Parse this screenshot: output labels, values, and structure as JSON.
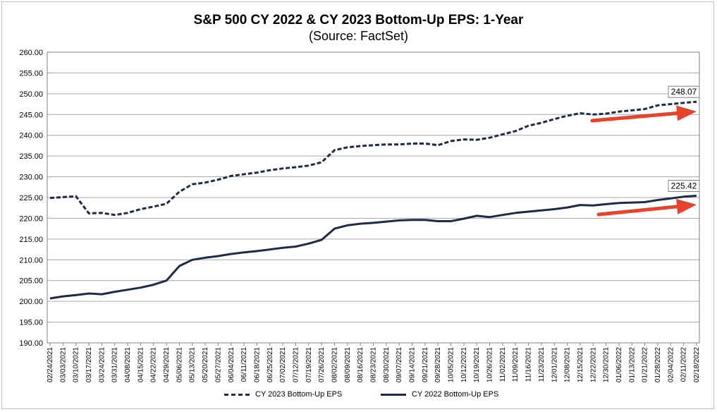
{
  "chart_data": {
    "type": "line",
    "title": "S&P 500 CY 2022 & CY 2023 Bottom-Up EPS: 1-Year",
    "subtitle": "(Source: FactSet)",
    "ylim": [
      190,
      260
    ],
    "yticks": [
      "190.00",
      "195.00",
      "200.00",
      "205.00",
      "210.00",
      "215.00",
      "220.00",
      "225.00",
      "230.00",
      "235.00",
      "240.00",
      "245.00",
      "250.00",
      "255.00",
      "260.00"
    ],
    "grid": true,
    "legend_position": "bottom",
    "x": [
      "02/24/2021",
      "03/03/2021",
      "03/10/2021",
      "03/17/2021",
      "03/24/2021",
      "03/31/2021",
      "04/08/2021",
      "04/15/2021",
      "04/22/2021",
      "04/29/2021",
      "05/06/2021",
      "05/13/2021",
      "05/20/2021",
      "05/27/2021",
      "06/04/2021",
      "06/11/2021",
      "06/18/2021",
      "06/25/2021",
      "07/02/2021",
      "07/12/2021",
      "07/19/2021",
      "07/26/2021",
      "08/02/2021",
      "08/09/2021",
      "08/16/2021",
      "08/23/2021",
      "08/30/2021",
      "09/07/2021",
      "09/14/2021",
      "09/21/2021",
      "09/28/2021",
      "10/05/2021",
      "10/12/2021",
      "10/19/2021",
      "10/26/2021",
      "11/02/2021",
      "11/09/2021",
      "11/16/2021",
      "11/23/2021",
      "12/01/2021",
      "12/08/2021",
      "12/15/2021",
      "12/22/2021",
      "12/30/2021",
      "01/06/2022",
      "01/13/2022",
      "01/21/2022",
      "01/28/2022",
      "02/04/2022",
      "02/11/2022",
      "02/18/2022"
    ],
    "series": [
      {
        "name": "CY 2023 Bottom-Up EPS",
        "style": "dashed",
        "color": "#1f2a4a",
        "values": [
          224.9,
          225.1,
          225.3,
          221.2,
          221.3,
          220.8,
          221.3,
          222.2,
          222.8,
          223.5,
          226.4,
          228.2,
          228.6,
          229.3,
          230.2,
          230.6,
          231.0,
          231.6,
          232.0,
          232.3,
          232.7,
          233.5,
          236.4,
          237.1,
          237.4,
          237.6,
          237.8,
          237.8,
          238.0,
          238.0,
          237.6,
          238.6,
          239.0,
          238.9,
          239.4,
          240.2,
          241.0,
          242.3,
          243.0,
          243.9,
          244.7,
          245.3,
          245.0,
          245.2,
          245.7,
          246.0,
          246.3,
          247.2,
          247.5,
          247.8,
          248.07
        ]
      },
      {
        "name": "CY 2022 Bottom-Up EPS",
        "style": "solid",
        "color": "#1f2a4a",
        "values": [
          200.7,
          201.2,
          201.5,
          201.9,
          201.7,
          202.3,
          202.8,
          203.3,
          204.0,
          205.0,
          208.5,
          210.0,
          210.5,
          210.9,
          211.4,
          211.8,
          212.1,
          212.5,
          212.9,
          213.2,
          213.9,
          214.8,
          217.5,
          218.3,
          218.7,
          218.9,
          219.2,
          219.5,
          219.6,
          219.6,
          219.3,
          219.3,
          219.9,
          220.6,
          220.3,
          220.8,
          221.3,
          221.6,
          221.9,
          222.2,
          222.6,
          223.2,
          223.1,
          223.4,
          223.7,
          223.8,
          223.9,
          224.4,
          224.8,
          225.2,
          225.42
        ]
      }
    ],
    "annotations": [
      "248.07",
      "225.42"
    ]
  },
  "legend": {
    "cy2023": "CY 2023 Bottom-Up EPS",
    "cy2022": "CY 2022 Bottom-Up EPS"
  },
  "colors": {
    "line": "#1f2a4a",
    "arrow": "#e8412c",
    "grid": "#a6a6a6"
  }
}
